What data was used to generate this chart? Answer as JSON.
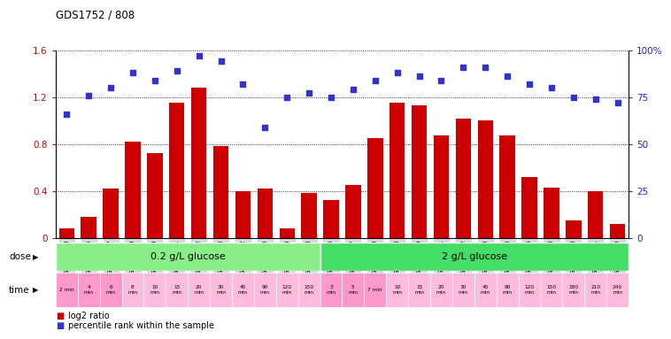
{
  "title": "GDS1752 / 808",
  "samples": [
    "GSM95003",
    "GSM95005",
    "GSM95007",
    "GSM95009",
    "GSM95010",
    "GSM95011",
    "GSM95012",
    "GSM95013",
    "GSM95002",
    "GSM95004",
    "GSM95006",
    "GSM95008",
    "GSM94995",
    "GSM94997",
    "GSM94999",
    "GSM94988",
    "GSM94989",
    "GSM94991",
    "GSM94992",
    "GSM94993",
    "GSM94994",
    "GSM94996",
    "GSM94998",
    "GSM95000",
    "GSM95001",
    "GSM94990"
  ],
  "log2_ratio": [
    0.08,
    0.18,
    0.42,
    0.82,
    0.72,
    1.15,
    1.28,
    0.78,
    0.4,
    0.42,
    0.08,
    0.38,
    0.32,
    0.45,
    0.85,
    1.15,
    1.13,
    0.87,
    1.02,
    1.0,
    0.87,
    0.52,
    0.43,
    0.15,
    0.4,
    0.12
  ],
  "percentile_right": [
    66,
    76,
    80,
    88,
    84,
    89,
    97,
    94,
    82,
    59,
    75,
    77,
    75,
    79,
    84,
    88,
    86,
    84,
    91,
    91,
    86,
    82,
    80,
    75,
    74,
    72
  ],
  "bar_color": "#cc0000",
  "dot_color": "#3333cc",
  "ylim_left": [
    0,
    1.6
  ],
  "ylim_right": [
    0,
    100
  ],
  "yticks_left": [
    0,
    0.4,
    0.8,
    1.2,
    1.6
  ],
  "yticks_right": [
    0,
    25,
    50,
    75,
    100
  ],
  "ytick_labels_left": [
    "0",
    "0.4",
    "0.8",
    "1.2",
    "1.6"
  ],
  "ytick_labels_right": [
    "0",
    "25",
    "50",
    "75",
    "100%"
  ],
  "dose_label1": "0.2 g/L glucose",
  "dose_label2": "2 g/L glucose",
  "dose_color1": "#88ee88",
  "dose_color2": "#44dd66",
  "dose_split": 12,
  "n_samples": 26,
  "time_labels": [
    "2 min",
    "4\nmin",
    "6\nmin",
    "8\nmin",
    "10\nmin",
    "15\nmin",
    "20\nmin",
    "30\nmin",
    "45\nmin",
    "90\nmin",
    "120\nmin",
    "150\nmin",
    "3\nmin",
    "5\nmin",
    "7 min",
    "10\nmin",
    "15\nmin",
    "20\nmin",
    "30\nmin",
    "45\nmin",
    "90\nmin",
    "120\nmin",
    "150\nmin",
    "180\nmin",
    "210\nmin",
    "240\nmin"
  ],
  "time_pink_dark": "#ff99cc",
  "time_pink_light": "#ffbbdd",
  "time_dark_indices": [
    0,
    1,
    2,
    12,
    13,
    14
  ],
  "bar_color_left": "#cc0000",
  "tick_label_color_left": "#cc0000",
  "tick_label_color_right": "#2222cc"
}
